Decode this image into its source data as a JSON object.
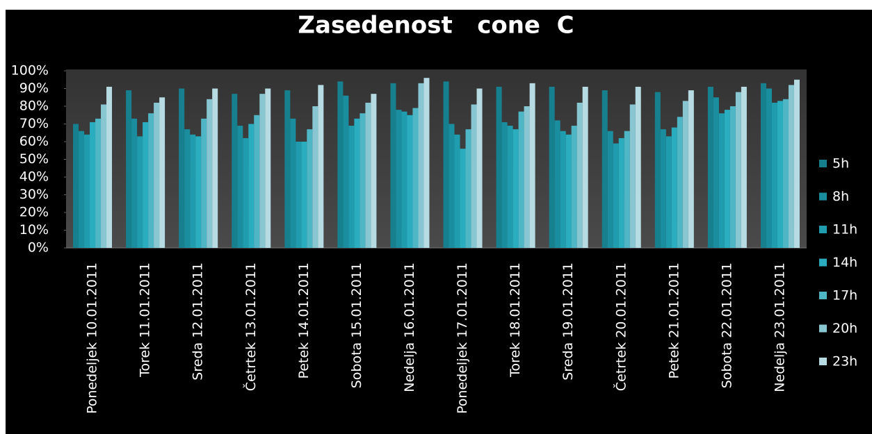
{
  "chart_data": {
    "type": "bar",
    "title": "Zasedenost   cone  C",
    "categories": [
      "Ponedeljek 10.01.2011",
      "Torek 11.01.2011",
      "Sreda 12.01.2011",
      "Četrtek 13.01.2011",
      "Petek 14.01.2011",
      "Sobota 15.01.2011",
      "Nedelja 16.01.2011",
      "Ponedeljek 17.01.2011",
      "Torek 18.01.2011",
      "Sreda 19.01.2011",
      "Četrtek 20.01.2011",
      "Petek 21.01.2011",
      "Sobota 22.01.2011",
      "Nedelja 23.01.2011"
    ],
    "series": [
      {
        "name": "5h",
        "color": "#17808f",
        "values": [
          70,
          89,
          90,
          87,
          89,
          94,
          93,
          94,
          91,
          91,
          89,
          88,
          91,
          93
        ]
      },
      {
        "name": "8h",
        "color": "#1a8e9e",
        "values": [
          66,
          73,
          67,
          69,
          73,
          86,
          78,
          70,
          71,
          72,
          66,
          67,
          85,
          90
        ]
      },
      {
        "name": "11h",
        "color": "#1f9cad",
        "values": [
          64,
          63,
          64,
          62,
          60,
          69,
          77,
          64,
          69,
          66,
          59,
          63,
          76,
          82
        ]
      },
      {
        "name": "14h",
        "color": "#29adbf",
        "values": [
          71,
          71,
          63,
          70,
          60,
          73,
          75,
          56,
          67,
          64,
          62,
          68,
          78,
          83
        ]
      },
      {
        "name": "17h",
        "color": "#4fb6c6",
        "values": [
          73,
          76,
          73,
          75,
          67,
          76,
          79,
          67,
          77,
          69,
          66,
          74,
          80,
          84
        ]
      },
      {
        "name": "20h",
        "color": "#88c6d2",
        "values": [
          81,
          82,
          84,
          87,
          80,
          82,
          93,
          81,
          80,
          82,
          81,
          83,
          88,
          92
        ]
      },
      {
        "name": "23h",
        "color": "#b6dbe3",
        "values": [
          91,
          85,
          90,
          90,
          92,
          87,
          96,
          90,
          93,
          91,
          91,
          89,
          91,
          95
        ]
      }
    ],
    "ylim": [
      0,
      100
    ],
    "yticks": [
      {
        "value": 0,
        "label": "0%"
      },
      {
        "value": 10,
        "label": "10%"
      },
      {
        "value": 20,
        "label": "20%"
      },
      {
        "value": 30,
        "label": "30%"
      },
      {
        "value": 40,
        "label": "40%"
      },
      {
        "value": 50,
        "label": "50%"
      },
      {
        "value": 60,
        "label": "60%"
      },
      {
        "value": 70,
        "label": "70%"
      },
      {
        "value": 80,
        "label": "80%"
      },
      {
        "value": 90,
        "label": "90%"
      },
      {
        "value": 100,
        "label": "100%"
      }
    ],
    "grid": false,
    "legend": "right"
  }
}
